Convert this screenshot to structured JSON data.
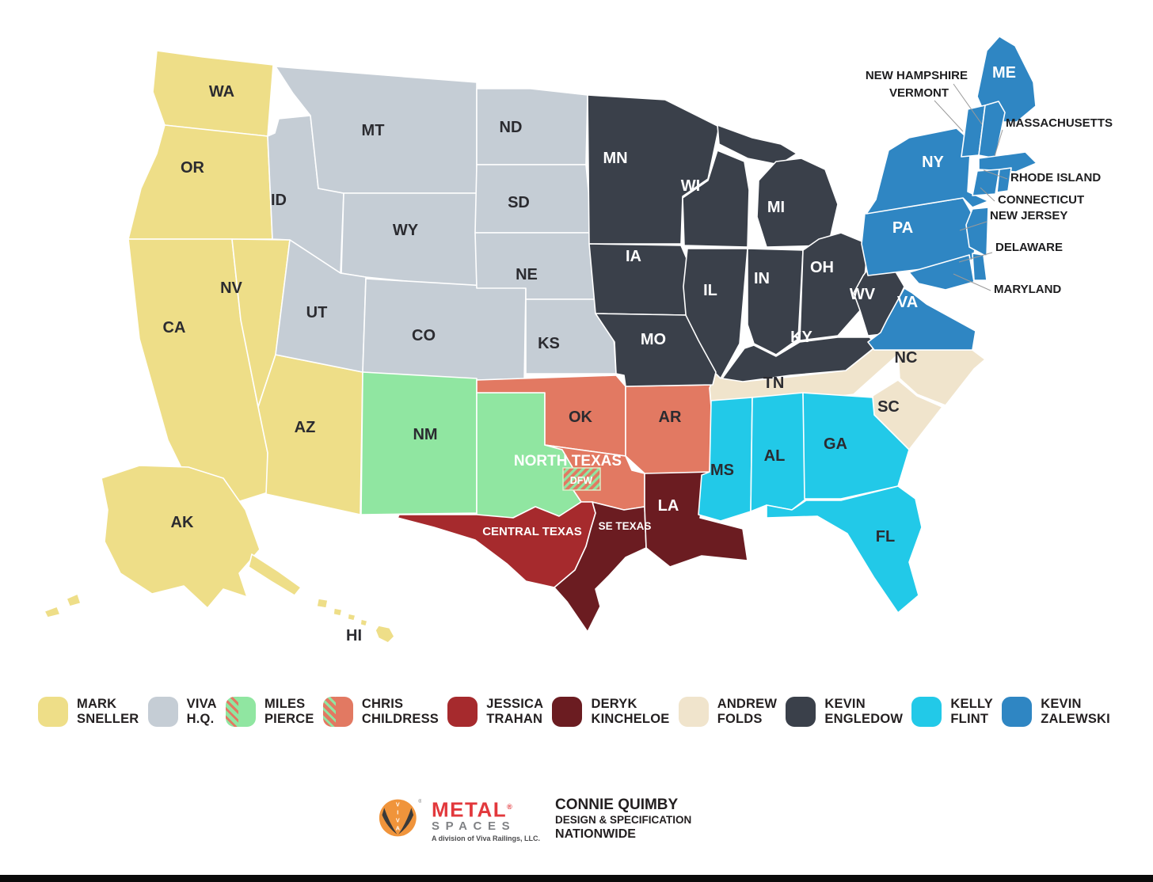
{
  "map": {
    "territories": {
      "mark_sneller": {
        "label": "MARK SNELLER",
        "color": "#EEDE88"
      },
      "viva_hq": {
        "label": "VIVA H.Q.",
        "color": "#C5CDD5"
      },
      "miles_pierce": {
        "label": "MILES PIERCE",
        "color": "#90E6A1"
      },
      "chris_childress": {
        "label": "CHRIS CHILDRESS",
        "color": "#E27962"
      },
      "jessica_trahan": {
        "label": "JESSICA TRAHAN",
        "color": "#A62A2D"
      },
      "deryk_kincheloe": {
        "label": "DERYK KINCHELOE",
        "color": "#6B1C21"
      },
      "andrew_folds": {
        "label": "ANDREW FOLDS",
        "color": "#F0E4CC"
      },
      "kevin_engledow": {
        "label": "KEVIN ENGLEDOW",
        "color": "#3A404A"
      },
      "kelly_flint": {
        "label": "KELLY FLINT",
        "color": "#22C9E8"
      },
      "kevin_zalewski": {
        "label": "KEVIN ZALEWSKI",
        "color": "#2F86C3"
      }
    },
    "states": [
      {
        "id": "WA",
        "label": "WA",
        "territory": "mark_sneller",
        "label_style": "dark"
      },
      {
        "id": "OR",
        "label": "OR",
        "territory": "mark_sneller",
        "label_style": "dark"
      },
      {
        "id": "CA",
        "label": "CA",
        "territory": "mark_sneller",
        "label_style": "dark"
      },
      {
        "id": "NV",
        "label": "NV",
        "territory": "mark_sneller",
        "label_style": "dark"
      },
      {
        "id": "AZ",
        "label": "AZ",
        "territory": "mark_sneller",
        "label_style": "dark"
      },
      {
        "id": "AK",
        "label": "AK",
        "territory": "mark_sneller",
        "label_style": "dark"
      },
      {
        "id": "HI",
        "label": "HI",
        "territory": "mark_sneller",
        "label_style": "dark"
      },
      {
        "id": "ID",
        "label": "ID",
        "territory": "viva_hq",
        "label_style": "dark"
      },
      {
        "id": "MT",
        "label": "MT",
        "territory": "viva_hq",
        "label_style": "dark"
      },
      {
        "id": "WY",
        "label": "WY",
        "territory": "viva_hq",
        "label_style": "dark"
      },
      {
        "id": "UT",
        "label": "UT",
        "territory": "viva_hq",
        "label_style": "dark"
      },
      {
        "id": "CO",
        "label": "CO",
        "territory": "viva_hq",
        "label_style": "dark"
      },
      {
        "id": "ND",
        "label": "ND",
        "territory": "viva_hq",
        "label_style": "dark"
      },
      {
        "id": "SD",
        "label": "SD",
        "territory": "viva_hq",
        "label_style": "dark"
      },
      {
        "id": "NE",
        "label": "NE",
        "territory": "viva_hq",
        "label_style": "dark"
      },
      {
        "id": "KS",
        "label": "KS",
        "territory": "viva_hq",
        "label_style": "dark"
      },
      {
        "id": "NM",
        "label": "NM",
        "territory": "miles_pierce",
        "label_style": "dark"
      },
      {
        "id": "TXW",
        "label": "",
        "territory": "miles_pierce",
        "label_style": "dark"
      },
      {
        "id": "OK",
        "label": "OK",
        "territory": "chris_childress",
        "label_style": "dark"
      },
      {
        "id": "AR",
        "label": "AR",
        "territory": "chris_childress",
        "label_style": "dark"
      },
      {
        "id": "TXN",
        "label": "",
        "territory": "chris_childress",
        "label_style": "light"
      },
      {
        "id": "TXC",
        "label": "",
        "territory": "jessica_trahan",
        "label_style": "light"
      },
      {
        "id": "TXSE",
        "label": "",
        "territory": "deryk_kincheloe",
        "label_style": "light"
      },
      {
        "id": "LA",
        "label": "LA",
        "territory": "deryk_kincheloe",
        "label_style": "light"
      },
      {
        "id": "TN",
        "label": "TN",
        "territory": "andrew_folds",
        "label_style": "dark"
      },
      {
        "id": "NC",
        "label": "NC",
        "territory": "andrew_folds",
        "label_style": "dark"
      },
      {
        "id": "SC",
        "label": "SC",
        "territory": "andrew_folds",
        "label_style": "dark"
      },
      {
        "id": "MN",
        "label": "MN",
        "territory": "kevin_engledow",
        "label_style": "light"
      },
      {
        "id": "WI",
        "label": "WI",
        "territory": "kevin_engledow",
        "label_style": "light"
      },
      {
        "id": "MI",
        "label": "MI",
        "territory": "kevin_engledow",
        "label_style": "light"
      },
      {
        "id": "IA",
        "label": "IA",
        "territory": "kevin_engledow",
        "label_style": "light"
      },
      {
        "id": "IL",
        "label": "IL",
        "territory": "kevin_engledow",
        "label_style": "light"
      },
      {
        "id": "IN",
        "label": "IN",
        "territory": "kevin_engledow",
        "label_style": "light"
      },
      {
        "id": "OH",
        "label": "OH",
        "territory": "kevin_engledow",
        "label_style": "light"
      },
      {
        "id": "MO",
        "label": "MO",
        "territory": "kevin_engledow",
        "label_style": "light"
      },
      {
        "id": "KY",
        "label": "KY",
        "territory": "kevin_engledow",
        "label_style": "light"
      },
      {
        "id": "WV",
        "label": "WV",
        "territory": "kevin_engledow",
        "label_style": "light"
      },
      {
        "id": "MS",
        "label": "MS",
        "territory": "kelly_flint",
        "label_style": "dark"
      },
      {
        "id": "AL",
        "label": "AL",
        "territory": "kelly_flint",
        "label_style": "dark"
      },
      {
        "id": "GA",
        "label": "GA",
        "territory": "kelly_flint",
        "label_style": "dark"
      },
      {
        "id": "FL",
        "label": "FL",
        "territory": "kelly_flint",
        "label_style": "dark"
      },
      {
        "id": "PA",
        "label": "PA",
        "territory": "kevin_zalewski",
        "label_style": "light"
      },
      {
        "id": "NY",
        "label": "NY",
        "territory": "kevin_zalewski",
        "label_style": "light"
      },
      {
        "id": "VA",
        "label": "VA",
        "territory": "kevin_zalewski",
        "label_style": "light"
      },
      {
        "id": "ME",
        "label": "ME",
        "territory": "kevin_zalewski",
        "label_style": "light"
      },
      {
        "id": "VT",
        "label": "",
        "territory": "kevin_zalewski",
        "label_style": "light"
      },
      {
        "id": "NH",
        "label": "",
        "territory": "kevin_zalewski",
        "label_style": "light"
      },
      {
        "id": "MA",
        "label": "",
        "territory": "kevin_zalewski",
        "label_style": "light"
      },
      {
        "id": "CT",
        "label": "",
        "territory": "kevin_zalewski",
        "label_style": "light"
      },
      {
        "id": "RI",
        "label": "",
        "territory": "kevin_zalewski",
        "label_style": "light"
      },
      {
        "id": "NJ",
        "label": "",
        "territory": "kevin_zalewski",
        "label_style": "light"
      },
      {
        "id": "DE",
        "label": "",
        "territory": "kevin_zalewski",
        "label_style": "light"
      },
      {
        "id": "MD",
        "label": "",
        "territory": "kevin_zalewski",
        "label_style": "light"
      }
    ],
    "region_labels": [
      {
        "text": "NORTH TEXAS"
      },
      {
        "text": "CENTRAL TEXAS"
      },
      {
        "text": "SE TEXAS"
      }
    ],
    "dfw_box_label": "DFW",
    "callouts": [
      "NEW HAMPSHIRE",
      "VERMONT",
      "MASSACHUSETTS",
      "RHODE ISLAND",
      "CONNECTICUT",
      "NEW JERSEY",
      "DELAWARE",
      "MARYLAND"
    ]
  },
  "legend": {
    "items": [
      {
        "line1": "MARK",
        "line2": "SNELLER",
        "color": "#EEDE88",
        "hatch": null
      },
      {
        "line1": "VIVA",
        "line2": "H.Q.",
        "color": "#C5CDD5",
        "hatch": null
      },
      {
        "line1": "MILES",
        "line2": "PIERCE",
        "color": "#90E6A1",
        "hatch": "#E27962"
      },
      {
        "line1": "CHRIS",
        "line2": "CHILDRESS",
        "color": "#E27962",
        "hatch": "#90E6A1"
      },
      {
        "line1": "JESSICA",
        "line2": "TRAHAN",
        "color": "#A62A2D",
        "hatch": null
      },
      {
        "line1": "DERYK",
        "line2": "KINCHELOE",
        "color": "#6B1C21",
        "hatch": null
      },
      {
        "line1": "ANDREW",
        "line2": "FOLDS",
        "color": "#F0E4CC",
        "hatch": null
      },
      {
        "line1": "KEVIN",
        "line2": "ENGLEDOW",
        "color": "#3A404A",
        "hatch": null
      },
      {
        "line1": "KELLY",
        "line2": "FLINT",
        "color": "#22C9E8",
        "hatch": null
      },
      {
        "line1": "KEVIN",
        "line2": "ZALEWSKI",
        "color": "#2F86C3",
        "hatch": null
      }
    ]
  },
  "footer": {
    "brand": "METAL",
    "brand_reg": "®",
    "brand_sub": "SPACES",
    "division": "A division of Viva Railings, LLC.",
    "logo_letters": "VIVA",
    "contact_name": "CONNIE QUIMBY",
    "contact_role": "DESIGN & SPECIFICATION",
    "contact_scope": "NATIONWIDE"
  }
}
